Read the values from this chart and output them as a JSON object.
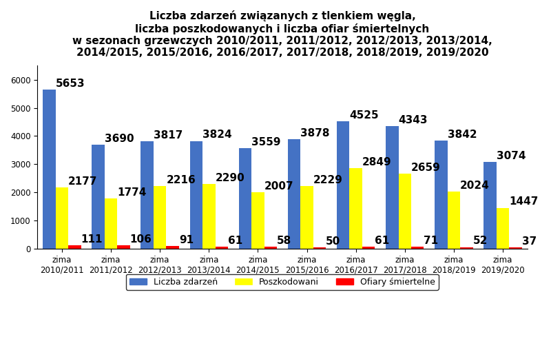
{
  "title": "Liczba zdarzeń związanych z tlenkiem węgla,\nliczba poszkodowanych i liczba ofiar śmiertelnych\nw sezonach grzewczych 2010/2011, 2011/2012, 2012/2013, 2013/2014,\n2014/2015, 2015/2016, 2016/2017, 2017/2018, 2018/2019, 2019/2020",
  "categories": [
    "zima\n2010/2011",
    "zima\n2011/2012",
    "zima\n2012/2013",
    "zima\n2013/2014",
    "zima\n2014/2015",
    "zima\n2015/2016",
    "zima\n2016/2017",
    "zima\n2017/2018",
    "zima\n2018/2019",
    "zima\n2019/2020"
  ],
  "liczba_zdarzen": [
    5653,
    3690,
    3817,
    3824,
    3559,
    3878,
    4525,
    4343,
    3842,
    3074
  ],
  "poszkodowani": [
    2177,
    1774,
    2216,
    2290,
    2007,
    2229,
    2849,
    2659,
    2024,
    1447
  ],
  "ofiary_smiertelne": [
    111,
    106,
    91,
    61,
    58,
    50,
    61,
    71,
    52,
    37
  ],
  "color_zdarzenia": "#4472C4",
  "color_poszkodowani": "#FFFF00",
  "color_ofiary": "#FF0000",
  "ylim": [
    0,
    6500
  ],
  "yticks": [
    0,
    1000,
    2000,
    3000,
    4000,
    5000,
    6000
  ],
  "legend_labels": [
    "Liczba zdarzeń",
    "Poszkodowani",
    "Ofiary śmiertelne"
  ],
  "bar_width": 0.26,
  "title_fontsize": 11,
  "label_fontsize": 11,
  "tick_fontsize": 8.5,
  "legend_fontsize": 9
}
